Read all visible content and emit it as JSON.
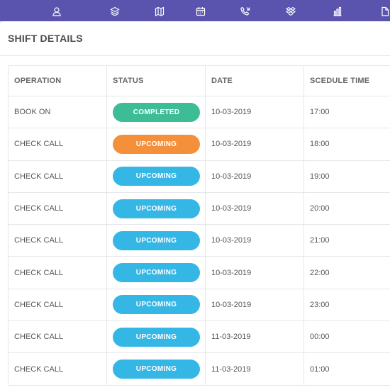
{
  "colors": {
    "topbar": "#5b54ae",
    "completed": "#3dbd95",
    "upcoming_orange": "#f5903a",
    "upcoming_blue": "#35b7e6"
  },
  "nav_icons": [
    "user-icon",
    "layers-icon",
    "map-icon",
    "calendar-icon",
    "phone-call-icon",
    "dropbox-icon",
    "bar-chart-icon",
    "document-icon"
  ],
  "card": {
    "title": "SHIFT DETAILS"
  },
  "table": {
    "headers": [
      "OPERATION",
      "STATUS",
      "DATE",
      "SCEDULE TIME"
    ],
    "rows": [
      {
        "operation": "BOOK ON",
        "status": "COMPLETED",
        "status_color": "#3dbd95",
        "date": "10-03-2019",
        "time": "17:00"
      },
      {
        "operation": "CHECK CALL",
        "status": "UPCOMING",
        "status_color": "#f5903a",
        "date": "10-03-2019",
        "time": "18:00"
      },
      {
        "operation": "CHECK CALL",
        "status": "UPCOMING",
        "status_color": "#35b7e6",
        "date": "10-03-2019",
        "time": "19:00"
      },
      {
        "operation": "CHECK CALL",
        "status": "UPCOMING",
        "status_color": "#35b7e6",
        "date": "10-03-2019",
        "time": "20:00"
      },
      {
        "operation": "CHECK CALL",
        "status": "UPCOMING",
        "status_color": "#35b7e6",
        "date": "10-03-2019",
        "time": "21:00"
      },
      {
        "operation": "CHECK CALL",
        "status": "UPCOMING",
        "status_color": "#35b7e6",
        "date": "10-03-2019",
        "time": "22:00"
      },
      {
        "operation": "CHECK CALL",
        "status": "UPCOMING",
        "status_color": "#35b7e6",
        "date": "10-03-2019",
        "time": "23:00"
      },
      {
        "operation": "CHECK CALL",
        "status": "UPCOMING",
        "status_color": "#35b7e6",
        "date": "11-03-2019",
        "time": "00:00"
      },
      {
        "operation": "CHECK CALL",
        "status": "UPCOMING",
        "status_color": "#35b7e6",
        "date": "11-03-2019",
        "time": "01:00"
      }
    ]
  }
}
